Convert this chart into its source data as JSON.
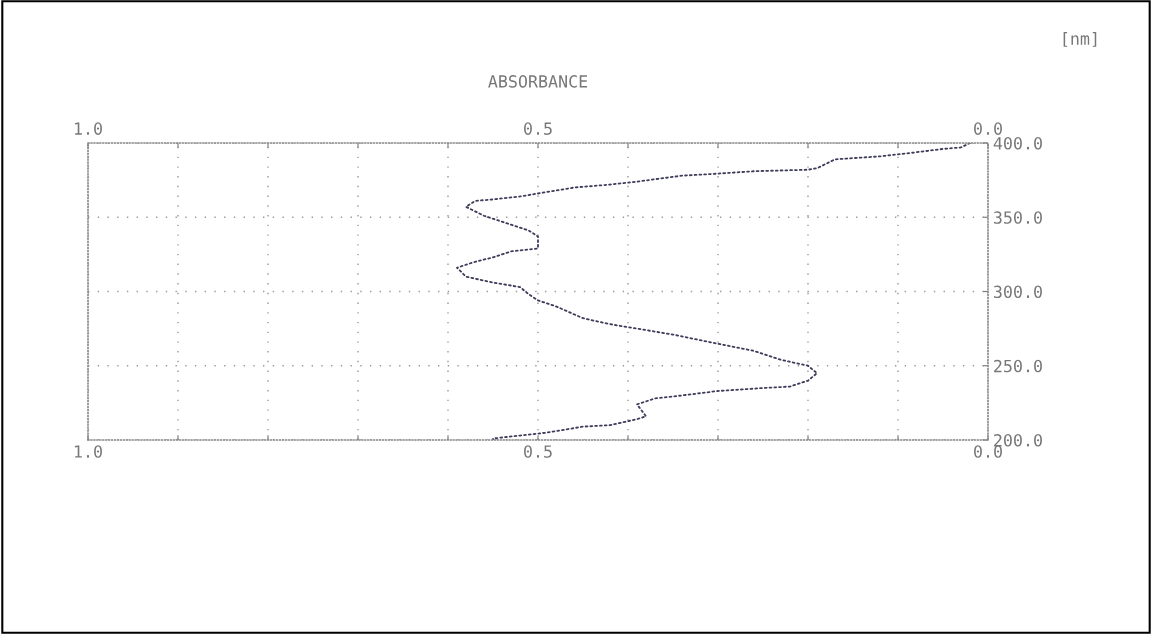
{
  "chart_data": {
    "type": "line",
    "title": "ABSORBANCE",
    "ylabel": "[nm]",
    "xlim": [
      1.0,
      0.0
    ],
    "x2lim": [
      1.0,
      0.0
    ],
    "ylim": [
      200,
      400
    ],
    "xticks": [
      {
        "value": 1.0,
        "label": "1.0"
      },
      {
        "value": 0.9,
        "label": null
      },
      {
        "value": 0.8,
        "label": null
      },
      {
        "value": 0.7,
        "label": null
      },
      {
        "value": 0.6,
        "label": null
      },
      {
        "value": 0.5,
        "label": "0.5"
      },
      {
        "value": 0.4,
        "label": null
      },
      {
        "value": 0.3,
        "label": null
      },
      {
        "value": 0.2,
        "label": null
      },
      {
        "value": 0.1,
        "label": null
      },
      {
        "value": 0.0,
        "label": "0.0"
      }
    ],
    "x2ticks": [
      {
        "value": 1.0,
        "label": "1.0"
      },
      {
        "value": 0.9,
        "label": null
      },
      {
        "value": 0.8,
        "label": null
      },
      {
        "value": 0.7,
        "label": null
      },
      {
        "value": 0.6,
        "label": null
      },
      {
        "value": 0.5,
        "label": "0.5"
      },
      {
        "value": 0.4,
        "label": null
      },
      {
        "value": 0.3,
        "label": null
      },
      {
        "value": 0.2,
        "label": null
      },
      {
        "value": 0.1,
        "label": null
      },
      {
        "value": 0.0,
        "label": "0.0"
      }
    ],
    "yticks": [
      {
        "value": 200,
        "label": "200.0"
      },
      {
        "value": 250,
        "label": "250.0"
      },
      {
        "value": 300,
        "label": "300.0"
      },
      {
        "value": 350,
        "label": "350.0"
      },
      {
        "value": 400,
        "label": "400.0"
      }
    ],
    "grid": true,
    "marker": "none",
    "line_style": "dotted",
    "series": [
      {
        "color": "#3c3c5a",
        "x": [
          0.02,
          0.03,
          0.05,
          0.09,
          0.12,
          0.17,
          0.19,
          0.2,
          0.26,
          0.31,
          0.34,
          0.39,
          0.42,
          0.46,
          0.5,
          0.52,
          0.55,
          0.57,
          0.58,
          0.57,
          0.56,
          0.53,
          0.51,
          0.5,
          0.5,
          0.5,
          0.53,
          0.55,
          0.57,
          0.59,
          0.58,
          0.55,
          0.52,
          0.51,
          0.5,
          0.48,
          0.45,
          0.42,
          0.39,
          0.35,
          0.31,
          0.26,
          0.23,
          0.2,
          0.19,
          0.2,
          0.22,
          0.25,
          0.3,
          0.34,
          0.37,
          0.39,
          0.38,
          0.39,
          0.42,
          0.45,
          0.49,
          0.52,
          0.55,
          0.55
        ],
        "values": [
          400,
          397,
          396,
          393,
          391,
          389,
          383,
          382,
          381,
          379,
          378,
          374,
          372,
          370,
          366,
          364,
          362,
          361,
          357,
          354,
          351,
          345,
          341,
          337,
          333,
          329,
          327,
          323,
          320,
          316,
          310,
          306,
          303,
          298,
          294,
          290,
          282,
          278,
          275,
          271,
          266,
          260,
          254,
          250,
          245,
          240,
          236,
          235,
          233,
          230,
          228,
          224,
          216,
          214,
          210,
          209,
          205,
          203,
          201,
          200
        ]
      }
    ]
  }
}
